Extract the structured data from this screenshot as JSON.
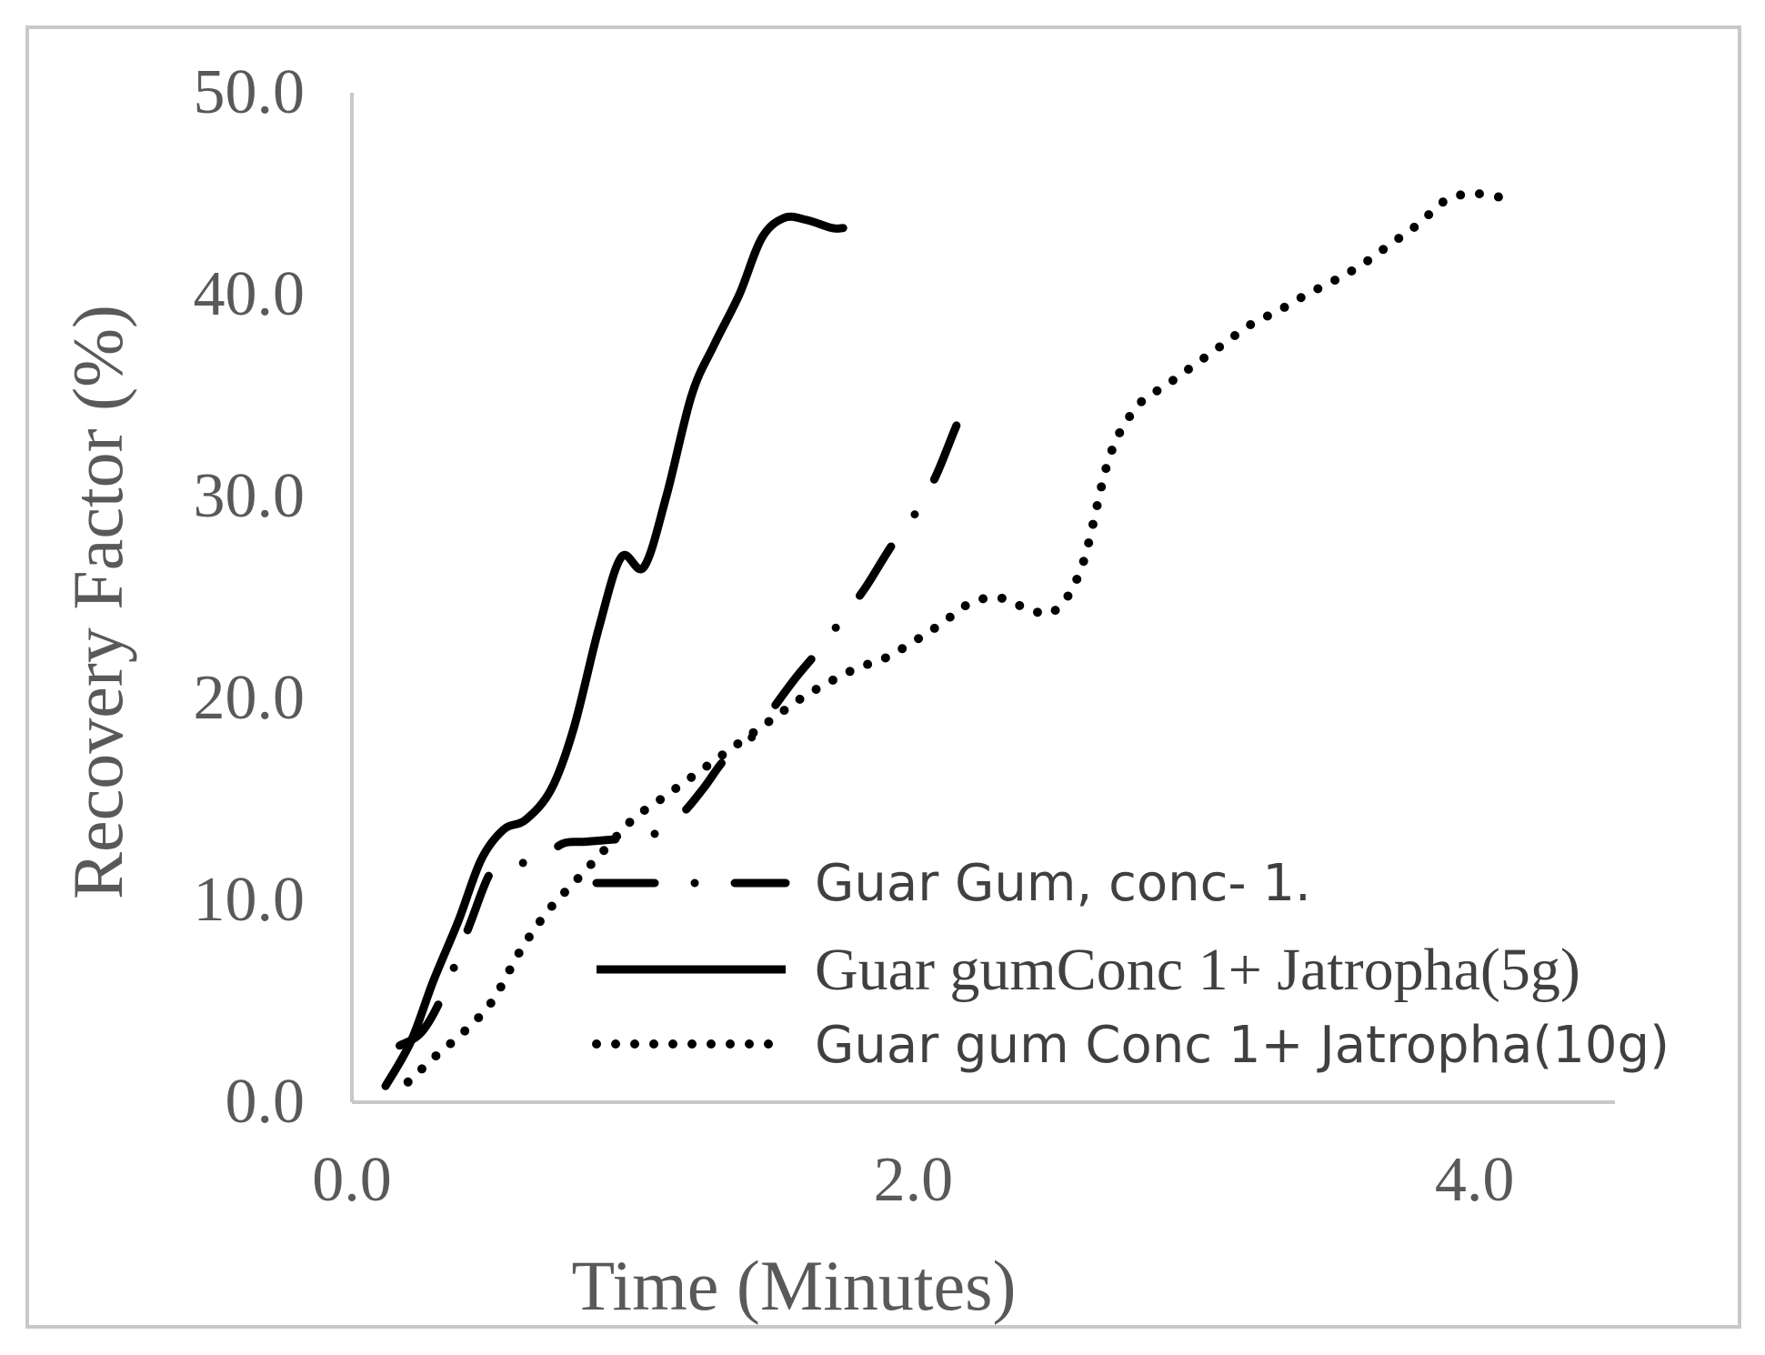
{
  "chart_data": {
    "type": "line",
    "title": "",
    "xlabel": "Time (Minutes)",
    "ylabel": "Recovery Factor (%)",
    "xlim": [
      0.0,
      4.5
    ],
    "ylim": [
      0.0,
      50.0
    ],
    "xticks": [
      "0.0",
      "2.0",
      "4.0"
    ],
    "xtick_values": [
      0.0,
      2.0,
      4.0
    ],
    "yticks": [
      "0.0",
      "10.0",
      "20.0",
      "30.0",
      "40.0",
      "50.0"
    ],
    "ytick_values": [
      0,
      10,
      20,
      30,
      40,
      50
    ],
    "grid": false,
    "legend_position": "bottom-right",
    "series": [
      {
        "name": "Guar Gum, conc- 1.",
        "style": "dash-dot",
        "color": "#000000",
        "x": [
          0.17,
          0.25,
          0.33,
          0.42,
          0.5,
          0.58,
          0.67,
          0.75,
          0.83,
          0.92,
          1.0,
          1.08,
          1.17,
          1.25,
          1.33,
          1.42,
          1.5,
          1.58,
          1.67,
          1.75,
          1.83,
          1.92,
          2.0,
          2.08,
          2.17,
          2.23
        ],
        "y": [
          2.8,
          3.5,
          5.5,
          8.8,
          11.5,
          11.8,
          12.0,
          12.8,
          12.9,
          13.0,
          13.1,
          13.3,
          14.2,
          15.5,
          17.0,
          18.0,
          19.5,
          21.0,
          22.5,
          24.0,
          25.5,
          27.5,
          29.0,
          31.0,
          34.0,
          35.0
        ]
      },
      {
        "name": "Guar gumConc 1+  Jatropha(5g)",
        "style": "solid",
        "color": "#000000",
        "x": [
          0.12,
          0.21,
          0.29,
          0.38,
          0.46,
          0.54,
          0.62,
          0.71,
          0.79,
          0.88,
          0.96,
          1.04,
          1.12,
          1.21,
          1.29,
          1.38,
          1.46,
          1.54,
          1.62,
          1.71,
          1.75
        ],
        "y": [
          0.8,
          3.0,
          6.0,
          9.0,
          12.0,
          13.5,
          14.0,
          15.5,
          18.5,
          23.5,
          27.0,
          26.5,
          30.0,
          35.0,
          37.5,
          40.0,
          42.8,
          43.8,
          43.7,
          43.3,
          43.3
        ]
      },
      {
        "name": "Guar gum Conc 1+  Jatropha(10g)",
        "style": "dotted",
        "color": "#000000",
        "x": [
          0.2,
          0.3,
          0.4,
          0.5,
          0.6,
          0.7,
          0.8,
          0.9,
          1.0,
          1.1,
          1.2,
          1.3,
          1.4,
          1.5,
          1.6,
          1.7,
          1.8,
          1.9,
          2.0,
          2.1,
          2.2,
          2.3,
          2.4,
          2.5,
          2.6,
          2.7,
          2.8,
          2.9,
          3.0,
          3.1,
          3.2,
          3.3,
          3.4,
          3.5,
          3.6,
          3.7,
          3.8,
          3.9,
          4.0,
          4.1
        ],
        "y": [
          1.0,
          2.3,
          3.5,
          5.0,
          7.5,
          9.5,
          11.0,
          12.5,
          14.0,
          15.0,
          16.0,
          17.0,
          18.0,
          19.0,
          20.0,
          20.8,
          21.5,
          22.0,
          22.8,
          23.7,
          24.7,
          25.0,
          24.5,
          24.3,
          26.5,
          32.0,
          34.5,
          35.5,
          36.5,
          37.5,
          38.5,
          39.2,
          40.0,
          40.7,
          41.5,
          42.5,
          43.5,
          44.7,
          45.0,
          44.8
        ]
      }
    ]
  }
}
